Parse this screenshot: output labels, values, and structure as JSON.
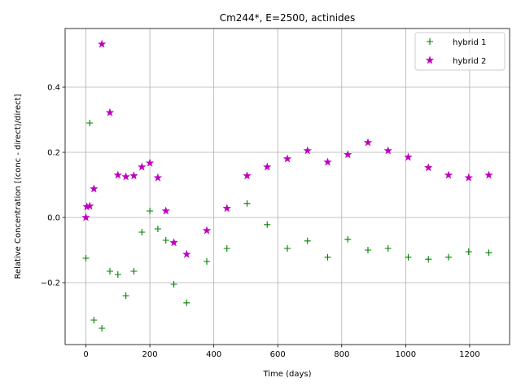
{
  "chart_data": {
    "type": "scatter",
    "title": "Cm244*, E=2500, actinides",
    "xlabel": "Time (days)",
    "ylabel": "Relative Concentration [(conc - direct)/direct]",
    "xlim": [
      -65,
      1325
    ],
    "ylim": [
      -0.39,
      0.58
    ],
    "xticks": [
      0,
      200,
      400,
      600,
      800,
      1000,
      1200
    ],
    "yticks": [
      -0.2,
      0.0,
      0.2,
      0.4
    ],
    "xtick_labels": [
      "0",
      "200",
      "400",
      "600",
      "800",
      "1000",
      "1200"
    ],
    "ytick_labels": [
      "−0.2",
      "0.0",
      "0.2",
      "0.4"
    ],
    "grid": true,
    "legend_position": "top-right",
    "series": [
      {
        "name": "hybrid 1",
        "marker": "plus",
        "color": "#008000",
        "x": [
          0,
          12,
          25,
          50,
          75,
          100,
          125,
          150,
          175,
          200,
          225,
          250,
          275,
          315,
          378,
          441,
          504,
          567,
          630,
          693,
          756,
          819,
          882,
          945,
          1008,
          1071,
          1134,
          1197,
          1260
        ],
        "y": [
          -0.125,
          0.29,
          -0.315,
          -0.34,
          -0.165,
          -0.175,
          -0.24,
          -0.165,
          -0.045,
          0.02,
          -0.035,
          -0.07,
          -0.205,
          -0.262,
          -0.135,
          -0.095,
          0.043,
          -0.022,
          -0.095,
          -0.072,
          -0.122,
          -0.067,
          -0.1,
          -0.095,
          -0.122,
          -0.128,
          -0.122,
          -0.105,
          -0.108
        ]
      },
      {
        "name": "hybrid 2",
        "marker": "star",
        "color": "#bf00bf",
        "x": [
          0,
          3,
          12,
          25,
          50,
          75,
          100,
          125,
          150,
          175,
          200,
          225,
          250,
          275,
          315,
          378,
          441,
          504,
          567,
          630,
          693,
          756,
          819,
          882,
          945,
          1008,
          1071,
          1134,
          1197,
          1260
        ],
        "y": [
          0.0,
          0.033,
          0.035,
          0.088,
          0.532,
          0.322,
          0.13,
          0.125,
          0.128,
          0.155,
          0.167,
          0.122,
          0.02,
          -0.077,
          -0.113,
          -0.04,
          0.028,
          0.128,
          0.155,
          0.18,
          0.205,
          0.17,
          0.193,
          0.23,
          0.205,
          0.185,
          0.153,
          0.13,
          0.122,
          0.13
        ]
      }
    ]
  }
}
